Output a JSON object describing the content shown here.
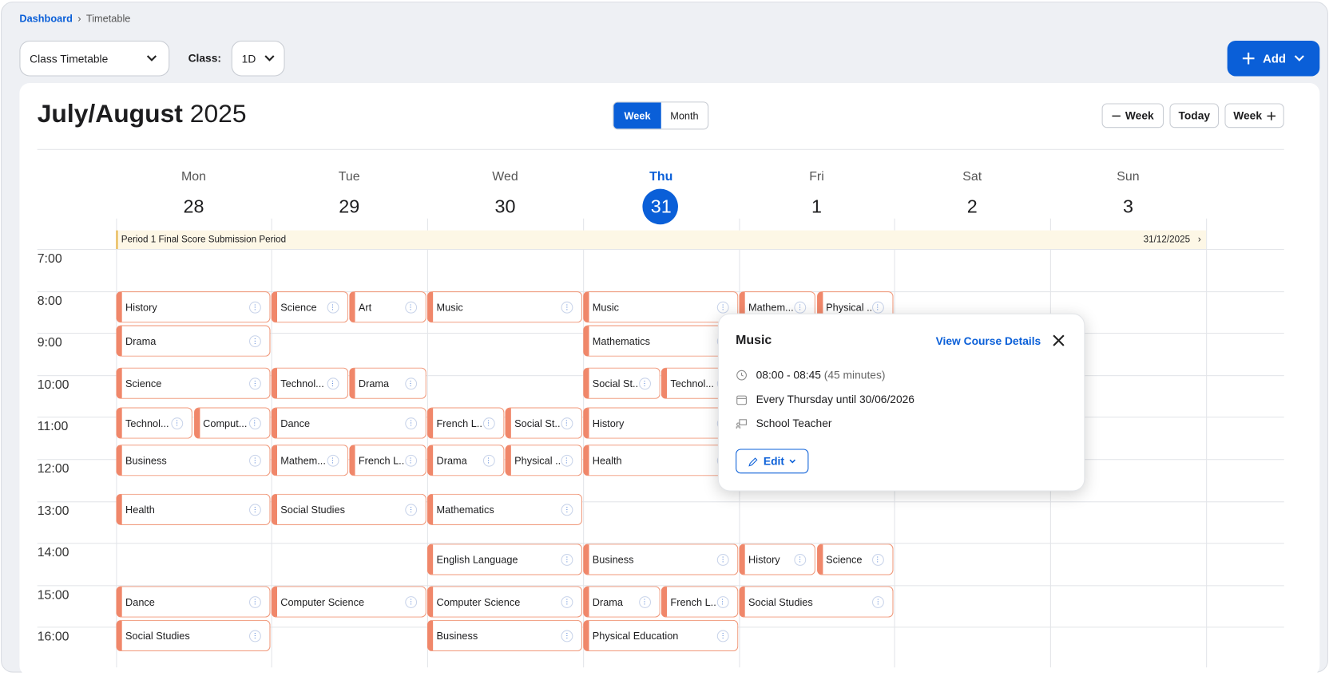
{
  "breadcrumb": {
    "home": "Dashboard",
    "current": "Timetable"
  },
  "toolbar": {
    "view_select": "Class Timetable",
    "class_label": "Class:",
    "class_value": "1D",
    "add_button": "Add"
  },
  "calendar": {
    "title_months": "July/August",
    "title_year": "2025",
    "view_week": "Week",
    "view_month": "Month",
    "prev_button": "Week",
    "today_button": "Today",
    "next_button": "Week"
  },
  "days": [
    {
      "name": "Mon",
      "date": "28"
    },
    {
      "name": "Tue",
      "date": "29"
    },
    {
      "name": "Wed",
      "date": "30"
    },
    {
      "name": "Thu",
      "date": "31"
    },
    {
      "name": "Fri",
      "date": "1"
    },
    {
      "name": "Sat",
      "date": "2"
    },
    {
      "name": "Sun",
      "date": "3"
    }
  ],
  "banner": {
    "text": "Period 1 Final Score Submission Period",
    "date": "31/12/2025"
  },
  "times": [
    "7:00",
    "8:00",
    "9:00",
    "10:00",
    "11:00",
    "12:00",
    "13:00",
    "14:00",
    "15:00",
    "16:00"
  ],
  "schedule": {
    "rows": [
      [
        [
          "History"
        ],
        [
          "Science",
          "Art"
        ],
        [
          "Music"
        ],
        [
          "Music"
        ],
        [
          "Mathem...",
          "Physical ..."
        ],
        [],
        []
      ],
      [
        [
          "Drama"
        ],
        [],
        [],
        [
          "Mathematics"
        ],
        [],
        [],
        []
      ],
      [
        [
          "Science"
        ],
        [
          "Technol...",
          "Drama"
        ],
        [],
        [
          "Social St...",
          "Technol..."
        ],
        [],
        [],
        []
      ],
      [
        [
          "Technol...",
          "Comput..."
        ],
        [
          "Dance"
        ],
        [
          "French L...",
          "Social St..."
        ],
        [
          "History"
        ],
        [],
        [],
        []
      ],
      [
        [
          "Business"
        ],
        [
          "Mathem...",
          "French L..."
        ],
        [
          "Drama",
          "Physical ..."
        ],
        [
          "Health"
        ],
        [],
        [],
        []
      ],
      [
        [
          "Health"
        ],
        [
          "Social Studies"
        ],
        [
          "Mathematics"
        ],
        [],
        [],
        [],
        []
      ],
      [
        [],
        [],
        [
          "English Language"
        ],
        [
          "Business"
        ],
        [
          "History",
          "Science"
        ],
        [],
        []
      ],
      [
        [
          "Dance"
        ],
        [
          "Computer Science"
        ],
        [
          "Computer Science"
        ],
        [
          "Drama",
          "French L..."
        ],
        [
          "Social Studies"
        ],
        [],
        []
      ],
      [
        [
          "Social Studies"
        ],
        [],
        [
          "Business"
        ],
        [
          "Physical Education"
        ],
        [],
        [],
        []
      ]
    ]
  },
  "popup": {
    "title": "Music",
    "link": "View Course Details",
    "time": "08:00 - 08:45",
    "duration": "(45 minutes)",
    "recurrence": "Every Thursday until 30/06/2026",
    "teacher": "School Teacher",
    "edit": "Edit"
  }
}
